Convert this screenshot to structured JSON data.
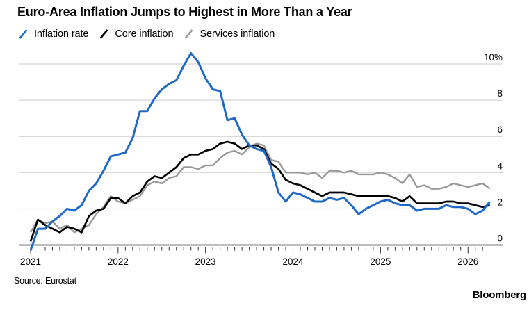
{
  "header": {
    "title": "Euro-Area Inflation Jumps to Highest in More Than a Year"
  },
  "legend": [
    {
      "label": "Inflation rate",
      "color": "#1e68c8"
    },
    {
      "label": "Core inflation",
      "color": "#000000"
    },
    {
      "label": "Services inflation",
      "color": "#999999"
    }
  ],
  "footer": {
    "source": "Source: Eurostat",
    "brand": "Bloomberg"
  },
  "chart_data": {
    "type": "line",
    "title": "Euro-Area Inflation Jumps to Highest in More Than a Year",
    "x_unit": "month",
    "x_tick_labels": [
      "2021",
      "2022",
      "2023",
      "2024",
      "2025",
      "2026"
    ],
    "x_tick_indices": [
      0,
      12,
      24,
      36,
      48,
      60
    ],
    "months_shown": 64,
    "y_ticks": [
      0,
      2,
      4,
      6,
      8,
      10
    ],
    "y_tick_labels": [
      "0",
      "2",
      "4",
      "6",
      "8",
      "10%"
    ],
    "ylim": [
      -0.5,
      11
    ],
    "grid": "horizontal",
    "legend_position": "top-left",
    "series": [
      {
        "name": "Inflation rate",
        "color": "#1e68c8",
        "values": [
          -0.3,
          0.9,
          0.9,
          1.3,
          1.6,
          2.0,
          1.9,
          2.2,
          3.0,
          3.4,
          4.1,
          4.9,
          5.0,
          5.1,
          5.9,
          7.4,
          7.4,
          8.1,
          8.6,
          8.9,
          9.1,
          9.9,
          10.6,
          10.1,
          9.2,
          8.6,
          8.5,
          6.9,
          7.0,
          6.1,
          5.5,
          5.3,
          5.2,
          4.3,
          2.9,
          2.4,
          2.9,
          2.8,
          2.6,
          2.4,
          2.4,
          2.6,
          2.5,
          2.6,
          2.2,
          1.7,
          2.0,
          2.2,
          2.4,
          2.5,
          2.3,
          2.2,
          2.2,
          1.9,
          2.0,
          2.0,
          2.0,
          2.2,
          2.1,
          2.1,
          2.0,
          1.7,
          1.9,
          2.4
        ]
      },
      {
        "name": "Core inflation",
        "color": "#000000",
        "values": [
          0.2,
          1.4,
          1.1,
          0.9,
          0.7,
          1.0,
          0.9,
          0.7,
          1.6,
          1.9,
          2.0,
          2.6,
          2.6,
          2.3,
          2.7,
          2.9,
          3.5,
          3.8,
          3.7,
          4.0,
          4.3,
          4.8,
          5.0,
          5.0,
          5.2,
          5.3,
          5.6,
          5.7,
          5.6,
          5.3,
          5.5,
          5.5,
          5.3,
          4.5,
          4.2,
          3.6,
          3.4,
          3.3,
          3.1,
          2.9,
          2.7,
          2.9,
          2.9,
          2.9,
          2.8,
          2.7,
          2.7,
          2.7,
          2.7,
          2.7,
          2.6,
          2.4,
          2.7,
          2.3,
          2.3,
          2.3,
          2.3,
          2.4,
          2.4,
          2.3,
          2.3,
          2.2,
          2.1,
          2.2
        ]
      },
      {
        "name": "Services inflation",
        "color": "#999999",
        "values": [
          0.7,
          1.4,
          1.2,
          1.3,
          0.9,
          1.1,
          0.7,
          0.9,
          1.1,
          1.7,
          2.1,
          2.7,
          2.4,
          2.3,
          2.5,
          2.7,
          3.3,
          3.5,
          3.4,
          3.7,
          3.8,
          4.3,
          4.3,
          4.2,
          4.4,
          4.4,
          4.8,
          5.1,
          5.2,
          5.0,
          5.4,
          5.6,
          5.5,
          4.7,
          4.6,
          4.0,
          4.0,
          4.0,
          3.9,
          4.0,
          3.7,
          4.1,
          4.1,
          4.0,
          4.1,
          3.9,
          3.9,
          3.9,
          4.0,
          3.9,
          3.7,
          3.4,
          3.9,
          3.2,
          3.3,
          3.1,
          3.1,
          3.2,
          3.4,
          3.3,
          3.2,
          3.3,
          3.4,
          3.1
        ]
      }
    ]
  }
}
